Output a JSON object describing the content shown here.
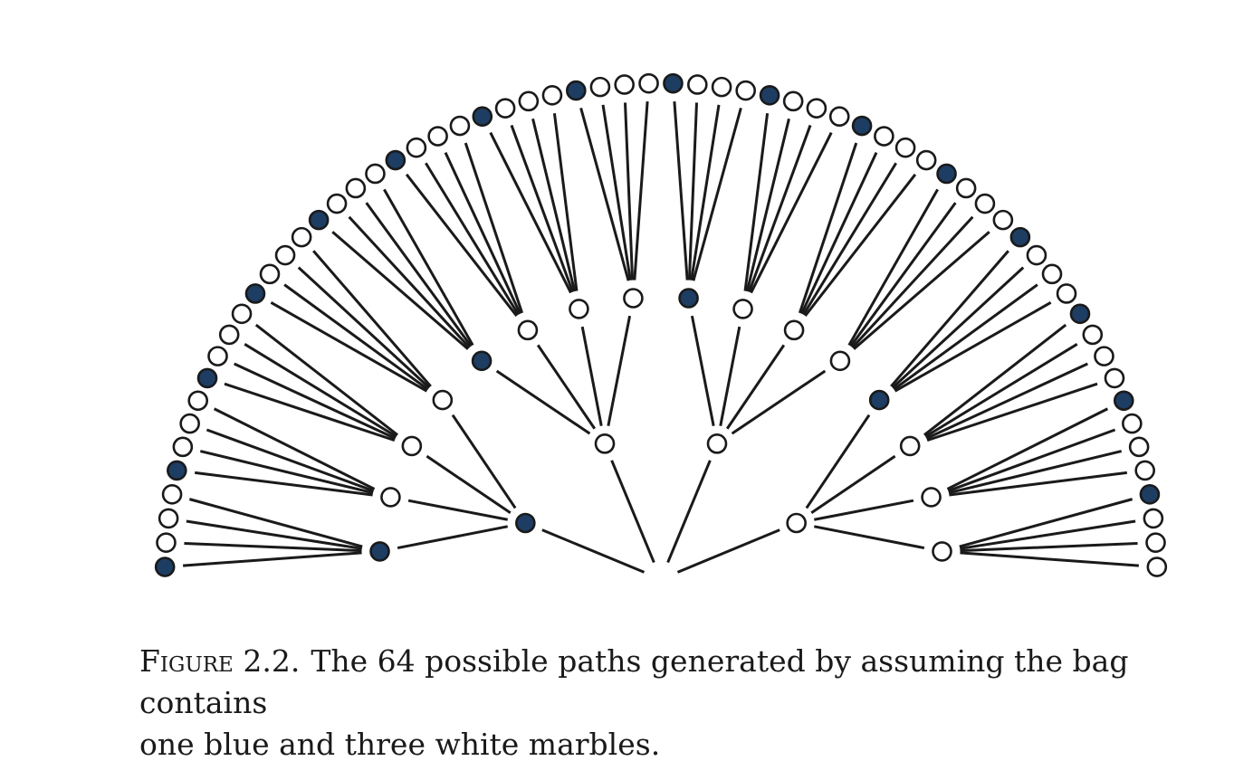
{
  "diagram": {
    "colors": {
      "blue": "#1d3d63",
      "white": "#ffffff",
      "line": "#1a1a1a"
    },
    "marble_order": [
      "blue",
      "white",
      "white",
      "white"
    ],
    "levels": 3,
    "path_count": 64
  },
  "caption": {
    "label": "Figure 2.2.",
    "line1": "The 64 possible paths generated by assuming the bag contains",
    "line2": "one blue and three white marbles."
  }
}
